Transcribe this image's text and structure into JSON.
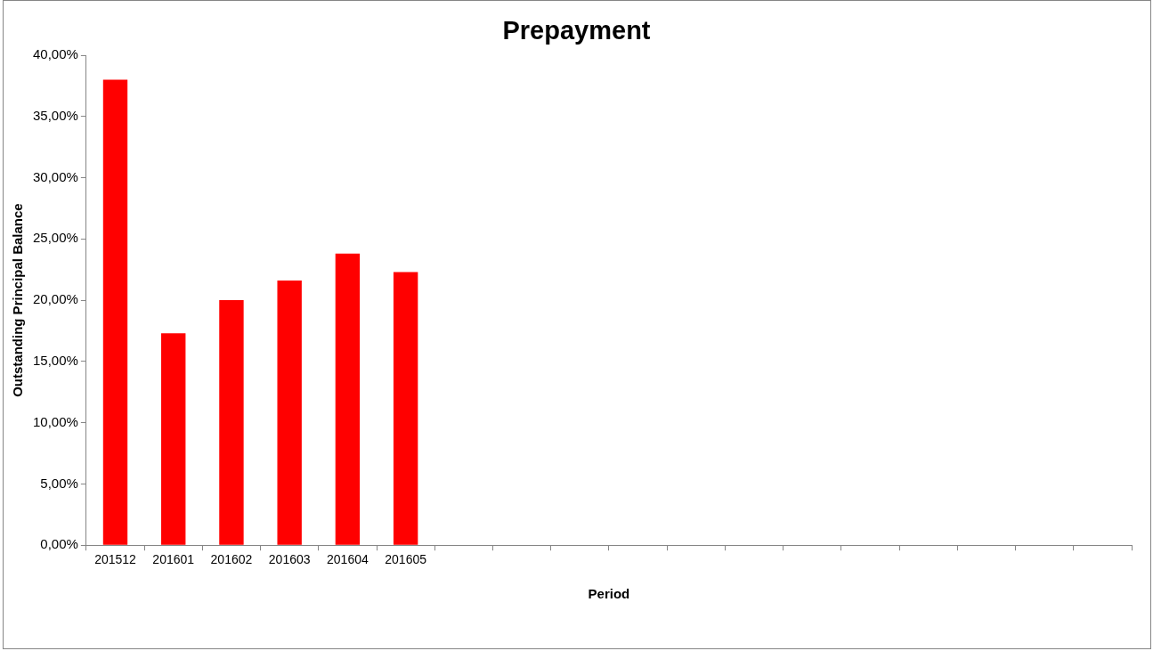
{
  "chart_data": {
    "type": "bar",
    "title": "Prepayment",
    "xlabel": "Period",
    "ylabel": "Outstanding Principal Balance",
    "categories": [
      "201512",
      "201601",
      "201602",
      "201603",
      "201604",
      "201605",
      null,
      null,
      null,
      null,
      null,
      null,
      null,
      null,
      null,
      null,
      null,
      null
    ],
    "values": [
      38.0,
      17.3,
      20.0,
      21.6,
      23.8,
      22.3,
      null,
      null,
      null,
      null,
      null,
      null,
      null,
      null,
      null,
      null,
      null,
      null
    ],
    "color": "#ff0000",
    "ylim": [
      0,
      40
    ],
    "yticks": [
      {
        "value": 0,
        "label": "0,00%"
      },
      {
        "value": 5,
        "label": "5,00%"
      },
      {
        "value": 10,
        "label": "10,00%"
      },
      {
        "value": 15,
        "label": "15,00%"
      },
      {
        "value": 20,
        "label": "20,00%"
      },
      {
        "value": 25,
        "label": "25,00%"
      },
      {
        "value": 30,
        "label": "30,00%"
      },
      {
        "value": 35,
        "label": "35,00%"
      },
      {
        "value": 40,
        "label": "40,00%"
      }
    ],
    "grid": false,
    "legend": false
  }
}
